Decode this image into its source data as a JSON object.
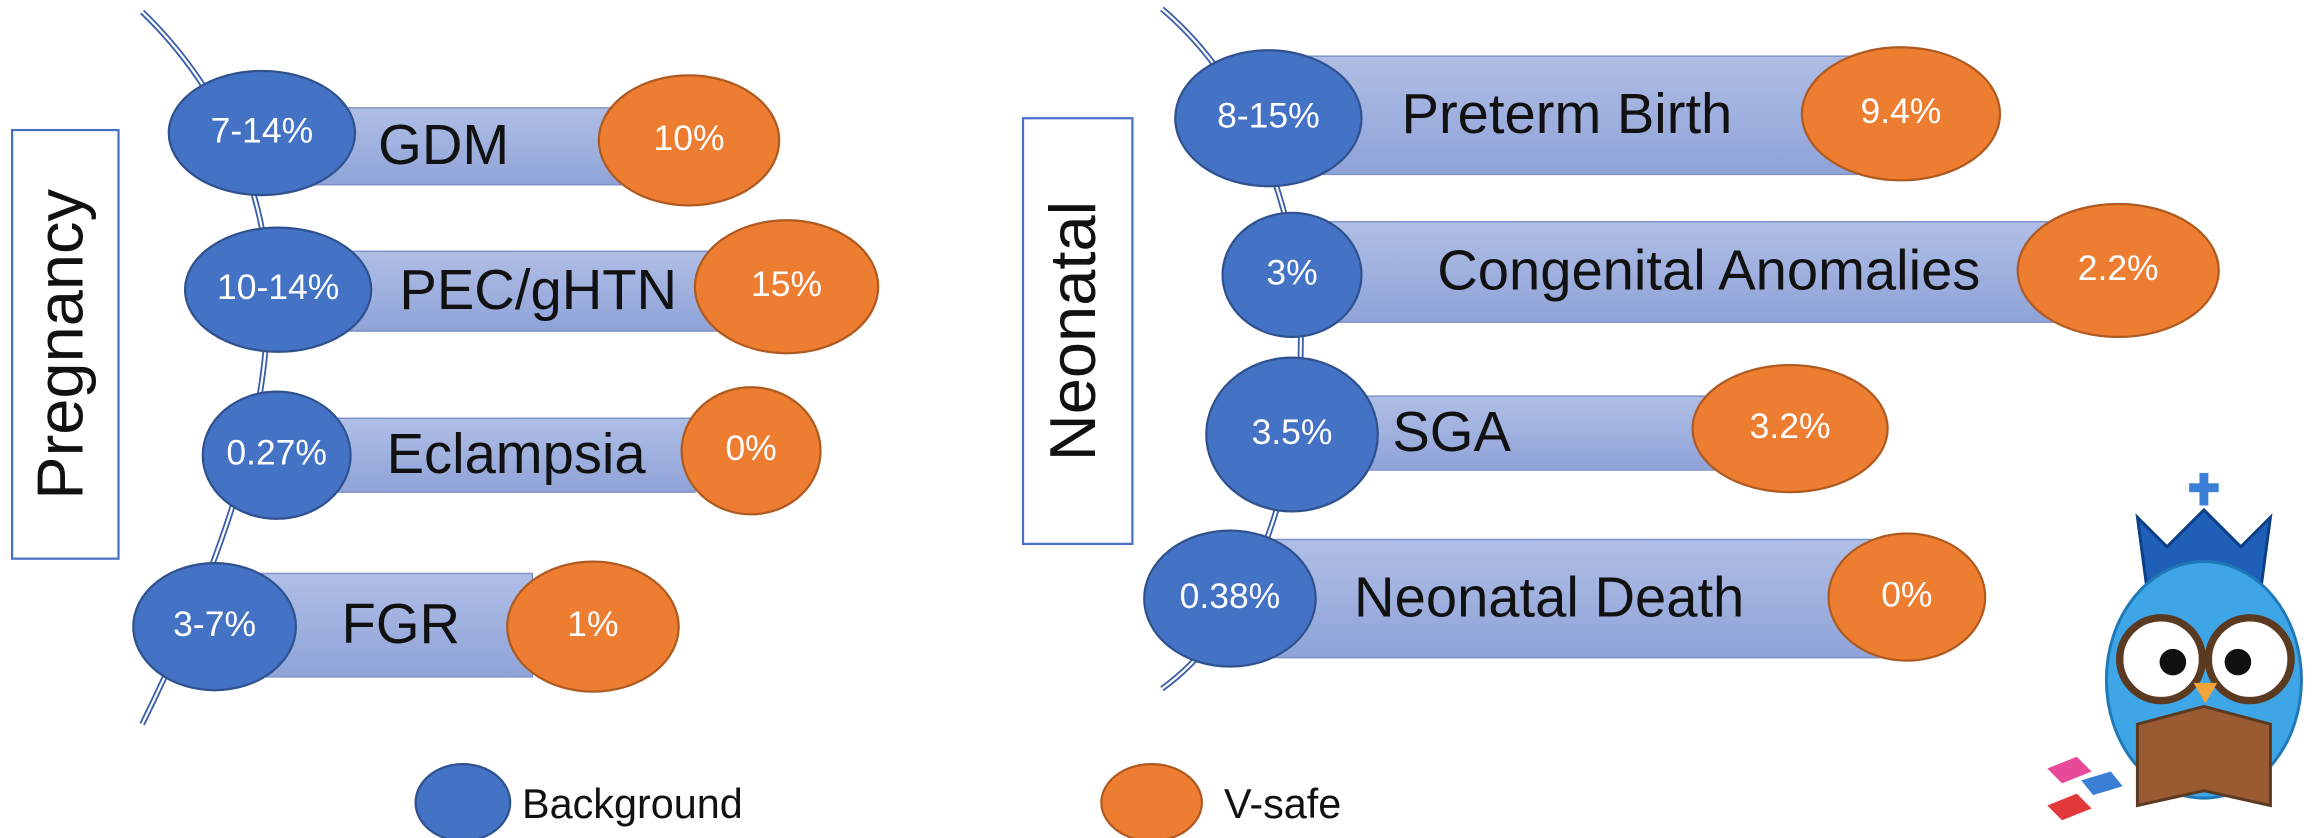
{
  "sections": [
    {
      "label": "Pregnancy",
      "rows": [
        {
          "label": "GDM",
          "background": "7-14%",
          "vsafe": "10%"
        },
        {
          "label": "PEC/gHTN",
          "background": "10-14%",
          "vsafe": "15%"
        },
        {
          "label": "Eclampsia",
          "background": "0.27%",
          "vsafe": "0%"
        },
        {
          "label": "FGR",
          "background": "3-7%",
          "vsafe": "1%"
        }
      ]
    },
    {
      "label": "Neonatal",
      "rows": [
        {
          "label": "Preterm Birth",
          "background": "8-15%",
          "vsafe": "9.4%"
        },
        {
          "label": "Congenital Anomalies",
          "background": "3%",
          "vsafe": "2.2%"
        },
        {
          "label": "SGA",
          "background": "3.5%",
          "vsafe": "3.2%"
        },
        {
          "label": "Neonatal Death",
          "background": "0.38%",
          "vsafe": "0%"
        }
      ]
    }
  ],
  "legend": {
    "background": "Background",
    "vsafe": "V-safe"
  }
}
